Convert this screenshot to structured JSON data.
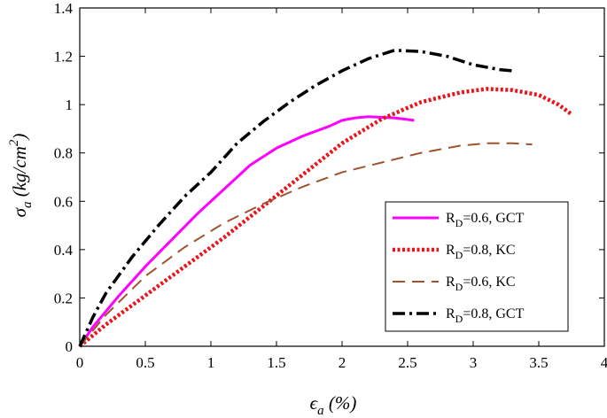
{
  "chart_data": {
    "type": "line",
    "xlabel": "ϵa (%)",
    "ylabel": "σa (kg/cm2)",
    "xlabel_parts": {
      "main": "ϵ",
      "sub": "a",
      "rest": " (%)"
    },
    "ylabel_parts": {
      "main": "σ",
      "sub": "a",
      "rest": " (kg/cm",
      "sup": "2",
      "close": ")"
    },
    "xlim": [
      0,
      4
    ],
    "ylim": [
      0,
      1.4
    ],
    "xticks": [
      0,
      0.5,
      1,
      1.5,
      2,
      2.5,
      3,
      3.5,
      4
    ],
    "xtick_labels": [
      "0",
      "0.5",
      "1",
      "1.5",
      "2",
      "2.5",
      "3",
      "3.5",
      "4"
    ],
    "yticks": [
      0,
      0.2,
      0.4,
      0.6,
      0.8,
      1,
      1.2,
      1.4
    ],
    "ytick_labels": [
      "0",
      "0.2",
      "0.4",
      "0.6",
      "0.8",
      "1",
      "1.2",
      "1.4"
    ],
    "grid": false,
    "legend_position": "lower-right",
    "series": [
      {
        "name": "RD=0.6, GCT",
        "legend": {
          "pre": "R",
          "sub": "D",
          "post": "=0.6, GCT"
        },
        "color": "#ff00ff",
        "style": "solid",
        "x": [
          0,
          0.1,
          0.3,
          0.5,
          0.7,
          0.9,
          1.1,
          1.3,
          1.5,
          1.7,
          1.9,
          2.0,
          2.1,
          2.2,
          2.4,
          2.55
        ],
        "y": [
          0,
          0.08,
          0.21,
          0.33,
          0.44,
          0.55,
          0.65,
          0.75,
          0.82,
          0.87,
          0.91,
          0.935,
          0.945,
          0.95,
          0.945,
          0.935
        ]
      },
      {
        "name": "RD=0.8, KC",
        "legend": {
          "pre": "R",
          "sub": "D",
          "post": "=0.8, KC"
        },
        "color": "#e8161c",
        "style": "dotted",
        "x": [
          0,
          0.2,
          0.5,
          0.8,
          1.1,
          1.4,
          1.7,
          2.0,
          2.3,
          2.6,
          2.9,
          3.1,
          3.3,
          3.5,
          3.65,
          3.75
        ],
        "y": [
          0,
          0.09,
          0.21,
          0.33,
          0.45,
          0.58,
          0.71,
          0.84,
          0.94,
          1.01,
          1.05,
          1.065,
          1.06,
          1.04,
          1.0,
          0.96
        ]
      },
      {
        "name": "RD=0.6, KC",
        "legend": {
          "pre": "R",
          "sub": "D",
          "post": "=0.6, KC"
        },
        "color": "#a0522d",
        "style": "dashed",
        "x": [
          0,
          0.2,
          0.5,
          0.8,
          1.1,
          1.4,
          1.7,
          2.0,
          2.3,
          2.6,
          2.9,
          3.1,
          3.3,
          3.45
        ],
        "y": [
          0,
          0.13,
          0.29,
          0.41,
          0.51,
          0.59,
          0.66,
          0.72,
          0.76,
          0.8,
          0.83,
          0.84,
          0.84,
          0.835
        ]
      },
      {
        "name": "RD=0.8, GCT",
        "legend": {
          "pre": "R",
          "sub": "D",
          "post": "=0.8,  GCT"
        },
        "color": "#000000",
        "style": "dashdot",
        "x": [
          0,
          0.1,
          0.2,
          0.4,
          0.6,
          0.8,
          1.0,
          1.2,
          1.4,
          1.6,
          1.8,
          2.0,
          2.2,
          2.4,
          2.6,
          2.8,
          3.0,
          3.2,
          3.3
        ],
        "y": [
          0,
          0.12,
          0.22,
          0.37,
          0.5,
          0.62,
          0.72,
          0.84,
          0.93,
          1.01,
          1.08,
          1.14,
          1.19,
          1.225,
          1.22,
          1.2,
          1.165,
          1.145,
          1.14
        ]
      }
    ]
  }
}
